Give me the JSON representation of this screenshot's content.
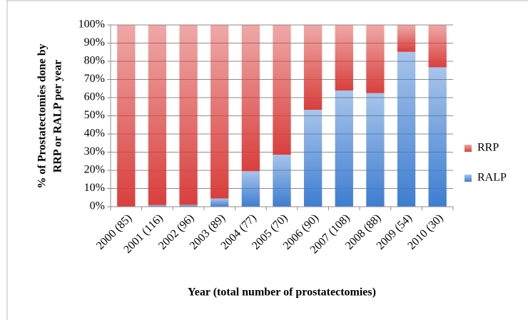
{
  "chart_data": {
    "type": "stacked-bar-100",
    "xlabel": "Year (total number of prostatectomies)",
    "ylabel": [
      "% of Prostatectomies done by",
      "RRP or RALP per year"
    ],
    "categories": [
      "2000 (85)",
      "2001 (116)",
      "2002 (96)",
      "2003 (89)",
      "2004 (77)",
      "2005 (70)",
      "2006 (90)",
      "2007 (108)",
      "2008 (88)",
      "2009 (54)",
      "2010 (30)"
    ],
    "series": [
      {
        "name": "RALP",
        "color": "#3d7dd1",
        "values": [
          0,
          0.9,
          1.0,
          4.5,
          19.5,
          28.6,
          53.3,
          63.9,
          62.5,
          85.2,
          76.7
        ]
      },
      {
        "name": "RRP",
        "color": "#d93f3c",
        "values": [
          100,
          99.1,
          99.0,
          95.5,
          80.5,
          71.4,
          46.7,
          36.1,
          37.5,
          14.8,
          23.3
        ]
      }
    ],
    "ylim": [
      0,
      100
    ],
    "yticks": [
      {
        "value": 0,
        "label": "0%"
      },
      {
        "value": 10,
        "label": "10%"
      },
      {
        "value": 20,
        "label": "20%"
      },
      {
        "value": 30,
        "label": "30%"
      },
      {
        "value": 40,
        "label": "40%"
      },
      {
        "value": 50,
        "label": "50%"
      },
      {
        "value": 60,
        "label": "60%"
      },
      {
        "value": 70,
        "label": "70%"
      },
      {
        "value": 80,
        "label": "80%"
      },
      {
        "value": 90,
        "label": "90%"
      },
      {
        "value": 100,
        "label": "100%"
      }
    ],
    "grid": true,
    "legend": "right"
  }
}
